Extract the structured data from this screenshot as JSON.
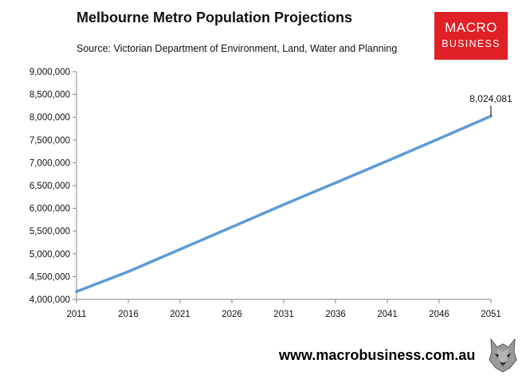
{
  "header": {
    "title": "Melbourne Metro Population Projections",
    "source": "Source: Victorian Department of Environment, Land, Water and Planning"
  },
  "logo": {
    "line1": "MACRO",
    "line2": "BUSINESS",
    "color": "#e01f26"
  },
  "footer": {
    "url": "www.macrobusiness.com.au",
    "icon": "wolf-icon"
  },
  "chart_data": {
    "type": "line",
    "title": "Melbourne Metro Population Projections",
    "xlabel": "",
    "ylabel": "",
    "x": [
      2011,
      2016,
      2021,
      2026,
      2031,
      2036,
      2041,
      2046,
      2051
    ],
    "xticks": [
      "2011",
      "2016",
      "2021",
      "2026",
      "2031",
      "2036",
      "2041",
      "2046",
      "2051"
    ],
    "yticks": [
      "4,000,000",
      "4,500,000",
      "5,000,000",
      "5,500,000",
      "6,000,000",
      "6,500,000",
      "7,000,000",
      "7,500,000",
      "8,000,000",
      "8,500,000",
      "9,000,000"
    ],
    "ylim": [
      4000000,
      9000000
    ],
    "series": [
      {
        "name": "Population",
        "color": "#5b9bd5",
        "values": [
          4170000,
          4610000,
          5100000,
          5590000,
          6080000,
          6560000,
          7040000,
          7530000,
          8024081
        ]
      }
    ],
    "annotation": {
      "label": "8,024,081",
      "x": 2051,
      "value": 8024081
    },
    "grid": false,
    "legend": "none"
  }
}
